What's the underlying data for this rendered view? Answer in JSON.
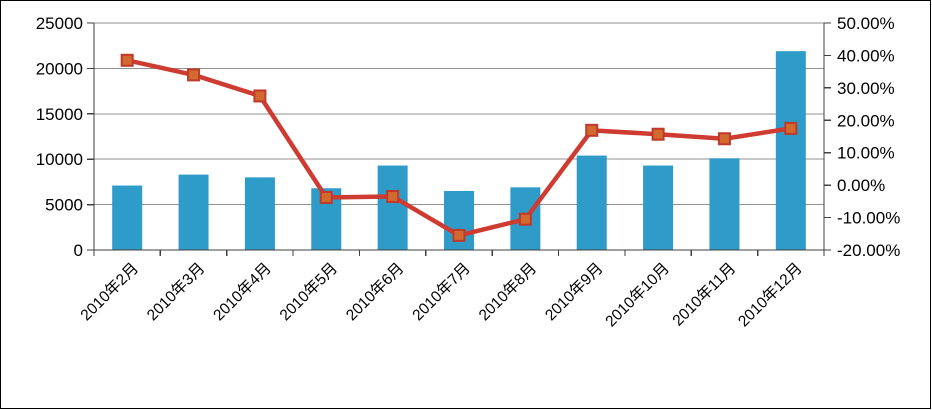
{
  "chart_data": {
    "type": "combo",
    "title": "",
    "categories": [
      "2010年2月",
      "2010年3月",
      "2010年4月",
      "2010年5月",
      "2010年6月",
      "2010年7月",
      "2010年8月",
      "2010年9月",
      "2010年10月",
      "2010年11月",
      "2010年12月"
    ],
    "series": [
      {
        "id": "bar-series",
        "type": "bar",
        "axis": "left",
        "color": "#2E9BC8",
        "values": [
          7100,
          8300,
          8000,
          6800,
          9300,
          6500,
          6900,
          10400,
          9300,
          10100,
          21900
        ]
      },
      {
        "id": "line-series",
        "type": "line",
        "axis": "right",
        "color": "#CE3B31",
        "marker": {
          "shape": "square",
          "fill": "#D2692E",
          "stroke": "#C03A2B"
        },
        "values": [
          38.5,
          34.0,
          27.5,
          -3.8,
          -3.5,
          -15.5,
          -10.5,
          16.9,
          15.7,
          14.3,
          17.5
        ]
      }
    ],
    "axis_left": {
      "min": 0,
      "max": 25000,
      "step": 5000,
      "tick_values": [
        0,
        5000,
        10000,
        15000,
        20000,
        25000
      ],
      "tick_labels": [
        "0",
        "5000",
        "10000",
        "15000",
        "20000",
        "25000"
      ]
    },
    "axis_right": {
      "min": -20,
      "max": 50,
      "step": 10,
      "tick_values": [
        -20,
        -10,
        0,
        10,
        20,
        30,
        40,
        50
      ],
      "tick_labels": [
        "-20.00%",
        "-10.00%",
        "0.00%",
        "10.00%",
        "20.00%",
        "30.00%",
        "40.00%",
        "50.00%"
      ]
    },
    "grid": true,
    "legend": false,
    "x_label_rotation_deg": 45,
    "colors": {
      "gridline": "#909090",
      "axis_line": "#404040",
      "text": "#000000",
      "background": "#FFFFFF",
      "frame_border": "#000000"
    }
  }
}
